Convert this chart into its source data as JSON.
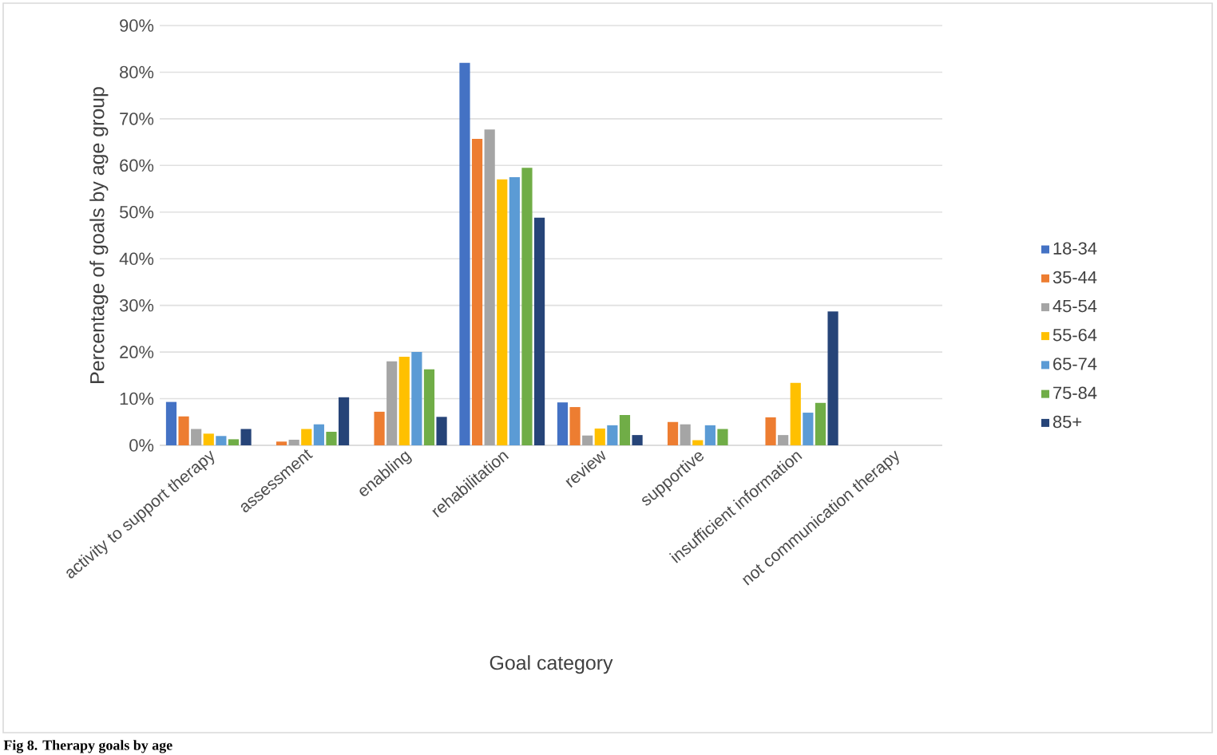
{
  "chart_data": {
    "type": "bar",
    "xlabel": "Goal category",
    "ylabel": "Percentage of goals by age group",
    "categories": [
      "activity to support therapy",
      "assessment",
      "enabling",
      "rehabilitation",
      "review",
      "supportive",
      "insufficient information",
      "not communication therapy"
    ],
    "series": [
      {
        "name": "18-34",
        "color": "#4472c4",
        "values": [
          9.3,
          0,
          0,
          82,
          9.2,
          0,
          0,
          0
        ]
      },
      {
        "name": "35-44",
        "color": "#ed7d31",
        "values": [
          6.2,
          0.8,
          7.2,
          65.7,
          8.2,
          5,
          6,
          0
        ]
      },
      {
        "name": "45-54",
        "color": "#a5a5a5",
        "values": [
          3.5,
          1.2,
          18,
          67.7,
          2.1,
          4.5,
          2.2,
          0
        ]
      },
      {
        "name": "55-64",
        "color": "#ffc000",
        "values": [
          2.5,
          3.5,
          19,
          57,
          3.6,
          1.1,
          13.4,
          0
        ]
      },
      {
        "name": "65-74",
        "color": "#5b9bd5",
        "values": [
          2,
          4.5,
          20,
          57.5,
          4.3,
          4.3,
          7,
          0
        ]
      },
      {
        "name": "75-84",
        "color": "#70ad47",
        "values": [
          1.3,
          2.9,
          16.3,
          59.5,
          6.5,
          3.5,
          9.1,
          0
        ]
      },
      {
        "name": "85+",
        "color": "#264478",
        "values": [
          3.5,
          10.3,
          6.1,
          48.8,
          2.2,
          0,
          28.7,
          0
        ]
      }
    ],
    "ylim": [
      0,
      90
    ],
    "yticks": [
      {
        "value": 0,
        "label": "0%"
      },
      {
        "value": 10,
        "label": "10%"
      },
      {
        "value": 20,
        "label": "20%"
      },
      {
        "value": 30,
        "label": "30%"
      },
      {
        "value": 40,
        "label": "40%"
      },
      {
        "value": 50,
        "label": "50%"
      },
      {
        "value": 60,
        "label": "60%"
      },
      {
        "value": 70,
        "label": "70%"
      },
      {
        "value": 80,
        "label": "80%"
      },
      {
        "value": 90,
        "label": "90%"
      }
    ],
    "grid": "y",
    "legend": "right",
    "annotations": [
      "Fig 8. Therapy goals by age"
    ]
  }
}
